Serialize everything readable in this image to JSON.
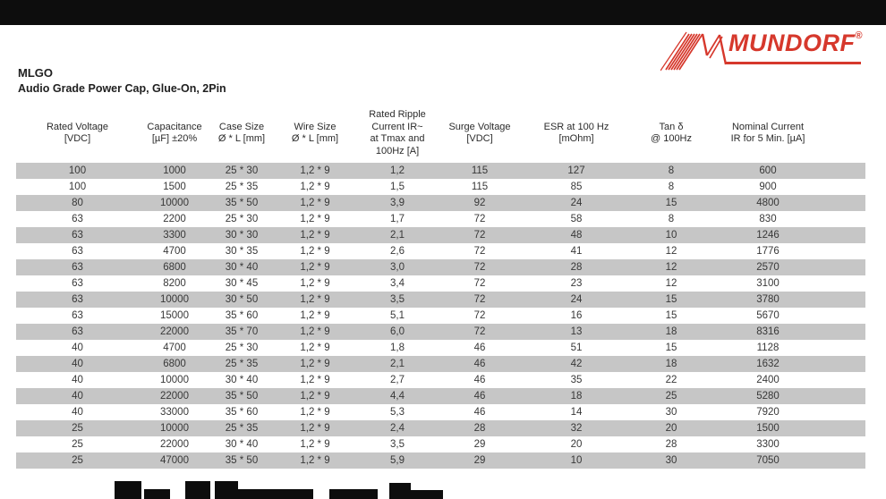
{
  "brand": {
    "logo_text": "MUNDORF",
    "registered_mark": "®",
    "logo_color": "#d6382c"
  },
  "header": {
    "product_code": "MLGO",
    "product_subtitle": "Audio Grade Power Cap, Glue-On, 2Pin"
  },
  "colors": {
    "accent_red": "#d6382c",
    "row_stripe": "#c6c6c6",
    "band_black": "#0d0d0d"
  },
  "table": {
    "columns": [
      "Rated Voltage\n[VDC]",
      "Capacitance\n[µF] ±20%",
      "Case Size\nØ * L [mm]",
      "Wire Size\nØ * L [mm]",
      "Rated Ripple\nCurrent IR~\nat Tmax and\n100Hz [A]",
      "Surge Voltage\n[VDC]",
      "ESR at 100 Hz\n[mOhm]",
      "Tan δ\n@ 100Hz",
      "Nominal Current\nIR for 5 Min. [µA]"
    ],
    "rows": [
      [
        "100",
        "1000",
        "25 * 30",
        "1,2 * 9",
        "1,2",
        "115",
        "127",
        "8",
        "600"
      ],
      [
        "100",
        "1500",
        "25 * 35",
        "1,2 * 9",
        "1,5",
        "115",
        "85",
        "8",
        "900"
      ],
      [
        "80",
        "10000",
        "35 * 50",
        "1,2 * 9",
        "3,9",
        "92",
        "24",
        "15",
        "4800"
      ],
      [
        "63",
        "2200",
        "25 * 30",
        "1,2 * 9",
        "1,7",
        "72",
        "58",
        "8",
        "830"
      ],
      [
        "63",
        "3300",
        "30 * 30",
        "1,2 * 9",
        "2,1",
        "72",
        "48",
        "10",
        "1246"
      ],
      [
        "63",
        "4700",
        "30 * 35",
        "1,2 * 9",
        "2,6",
        "72",
        "41",
        "12",
        "1776"
      ],
      [
        "63",
        "6800",
        "30 * 40",
        "1,2 * 9",
        "3,0",
        "72",
        "28",
        "12",
        "2570"
      ],
      [
        "63",
        "8200",
        "30 * 45",
        "1,2 * 9",
        "3,4",
        "72",
        "23",
        "12",
        "3100"
      ],
      [
        "63",
        "10000",
        "30 * 50",
        "1,2 * 9",
        "3,5",
        "72",
        "24",
        "15",
        "3780"
      ],
      [
        "63",
        "15000",
        "35 * 60",
        "1,2 * 9",
        "5,1",
        "72",
        "16",
        "15",
        "5670"
      ],
      [
        "63",
        "22000",
        "35 * 70",
        "1,2 * 9",
        "6,0",
        "72",
        "13",
        "18",
        "8316"
      ],
      [
        "40",
        "4700",
        "25 * 30",
        "1,2 * 9",
        "1,8",
        "46",
        "51",
        "15",
        "1128"
      ],
      [
        "40",
        "6800",
        "25 * 35",
        "1,2 * 9",
        "2,1",
        "46",
        "42",
        "18",
        "1632"
      ],
      [
        "40",
        "10000",
        "30 * 40",
        "1,2 * 9",
        "2,7",
        "46",
        "35",
        "22",
        "2400"
      ],
      [
        "40",
        "22000",
        "35 * 50",
        "1,2 * 9",
        "4,4",
        "46",
        "18",
        "25",
        "5280"
      ],
      [
        "40",
        "33000",
        "35 * 60",
        "1,2 * 9",
        "5,3",
        "46",
        "14",
        "30",
        "7920"
      ],
      [
        "25",
        "10000",
        "25 * 35",
        "1,2 * 9",
        "2,4",
        "28",
        "32",
        "20",
        "1500"
      ],
      [
        "25",
        "22000",
        "30 * 40",
        "1,2 * 9",
        "3,5",
        "29",
        "20",
        "28",
        "3300"
      ],
      [
        "25",
        "47000",
        "35 * 50",
        "1,2 * 9",
        "5,9",
        "29",
        "10",
        "30",
        "7050"
      ]
    ]
  }
}
